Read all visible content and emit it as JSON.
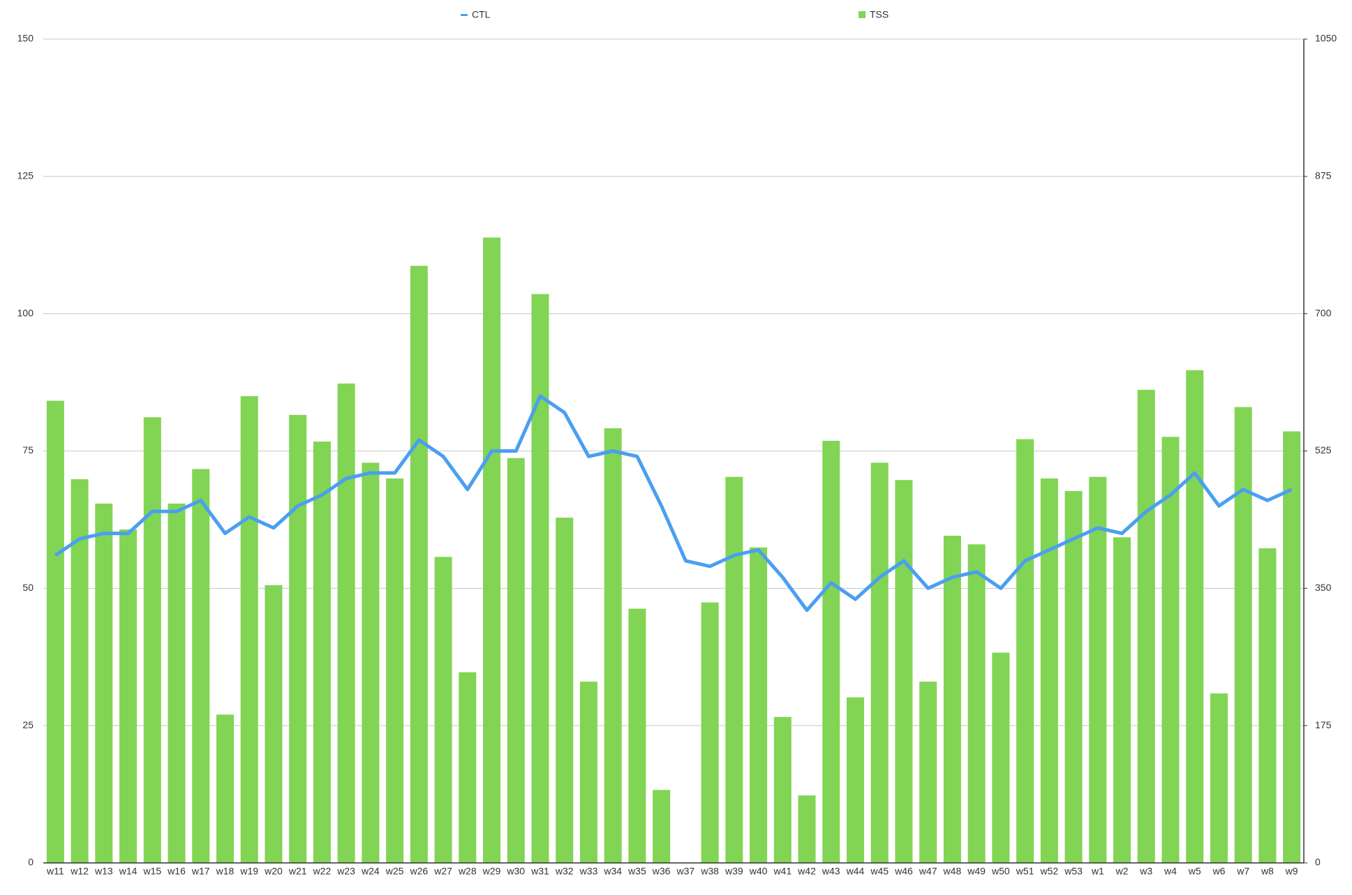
{
  "chart_data": {
    "type": "bar",
    "categories": [
      "w11",
      "w12",
      "w13",
      "w14",
      "w15",
      "w16",
      "w17",
      "w18",
      "w19",
      "w20",
      "w21",
      "w22",
      "w23",
      "w24",
      "w25",
      "w26",
      "w27",
      "w28",
      "w29",
      "w30",
      "w31",
      "w32",
      "w33",
      "w34",
      "w35",
      "w36",
      "w37",
      "w38",
      "w39",
      "w40",
      "w41",
      "w42",
      "w43",
      "w44",
      "w45",
      "w46",
      "w47",
      "w48",
      "w49",
      "w50",
      "w51",
      "w52",
      "w53",
      "w1",
      "w2",
      "w3",
      "w4",
      "w5",
      "w6",
      "w7",
      "w8",
      "w9"
    ],
    "series": [
      {
        "name": "CTL",
        "type": "line",
        "color": "#4a9ff0",
        "values": [
          56,
          59,
          60,
          60,
          64,
          64,
          66,
          60,
          63,
          61,
          65,
          67,
          70,
          71,
          71,
          77,
          74,
          68,
          75,
          75,
          85,
          82,
          74,
          75,
          74,
          65,
          55,
          54,
          56,
          57,
          52,
          46,
          51,
          48,
          52,
          55,
          50,
          52,
          53,
          50,
          55,
          57,
          59,
          61,
          60,
          64,
          67,
          71,
          65,
          68,
          66,
          68
        ]
      },
      {
        "name": "TSS",
        "type": "bar",
        "axis": "y2",
        "color": "#82d454",
        "values": [
          589,
          489,
          458,
          425,
          568,
          458,
          502,
          189,
          595,
          354,
          571,
          537,
          611,
          510,
          490,
          761,
          390,
          243,
          797,
          516,
          725,
          440,
          231,
          554,
          324,
          93,
          0,
          332,
          492,
          402,
          186,
          86,
          538,
          211,
          510,
          488,
          231,
          417,
          406,
          268,
          540,
          490,
          474,
          492,
          415,
          603,
          543,
          628,
          216,
          581,
          401,
          550
        ]
      }
    ],
    "ylim": [
      0,
      150
    ],
    "yticks": [
      0,
      25,
      50,
      75,
      100,
      125,
      150
    ],
    "y2lim": [
      0,
      1050
    ],
    "y2ticks": [
      0,
      175,
      350,
      525,
      700,
      875,
      1050
    ],
    "grid": true,
    "legend": "top"
  }
}
